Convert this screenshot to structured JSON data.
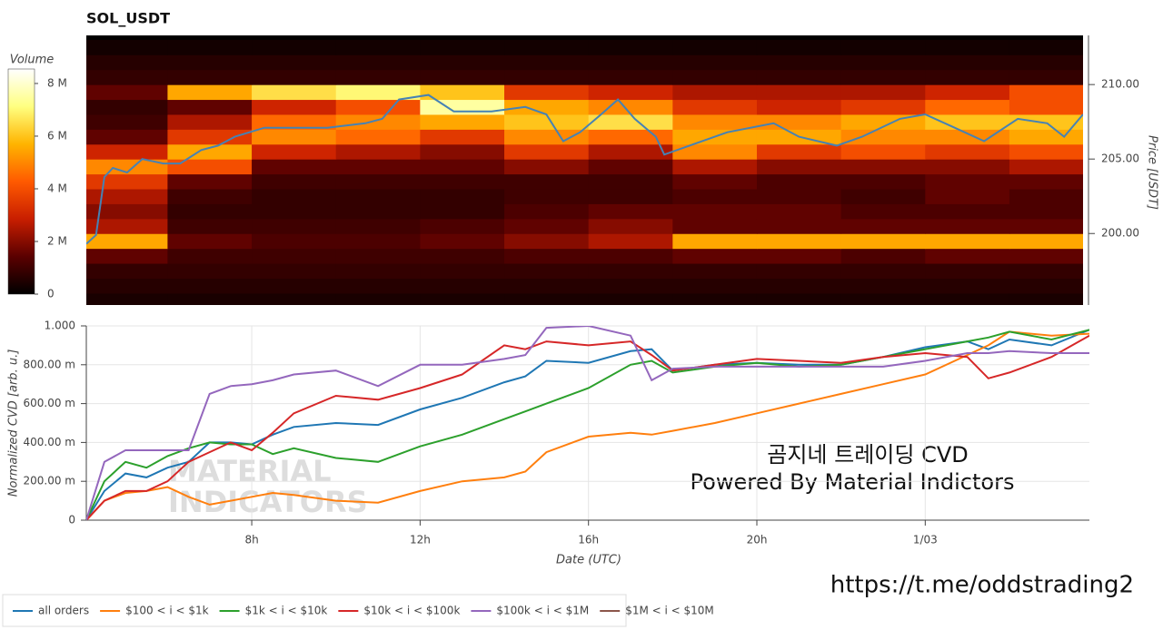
{
  "chart_data": [
    {
      "type": "heatmap",
      "title": "SOL_USDT",
      "ylabel": "Price [USDT]",
      "xlim": [
        4.07,
        27.75
      ],
      "ylim": [
        195.2,
        213.3
      ],
      "yticks": [
        {
          "value": 200,
          "label": "200.00"
        },
        {
          "value": 205,
          "label": "205.00"
        },
        {
          "value": 210,
          "label": "210.00"
        }
      ],
      "heatmap": {
        "x_edges": [
          4,
          6,
          8,
          10,
          12,
          14,
          16,
          18,
          20,
          22,
          24,
          26,
          28
        ],
        "y_edges": [
          195,
          196,
          197,
          198,
          199,
          200,
          201,
          202,
          203,
          204,
          205,
          206,
          207,
          208,
          209,
          210,
          211,
          212,
          213
        ],
        "values": [
          [
            400000,
            400000,
            400000,
            400000,
            400000,
            400000,
            400000,
            400000,
            400000,
            400000,
            400000,
            400000
          ],
          [
            600000,
            600000,
            600000,
            600000,
            600000,
            600000,
            600000,
            600000,
            600000,
            600000,
            600000,
            600000
          ],
          [
            800000,
            800000,
            800000,
            800000,
            800000,
            800000,
            800000,
            800000,
            800000,
            800000,
            800000,
            800000
          ],
          [
            1500000,
            1000000,
            1000000,
            1000000,
            1000000,
            1200000,
            1200000,
            1500000,
            1500000,
            1200000,
            1500000,
            1500000
          ],
          [
            5500000,
            1500000,
            1200000,
            1200000,
            1500000,
            2000000,
            2500000,
            5500000,
            5500000,
            5500000,
            5500000,
            5500000
          ],
          [
            2500000,
            1000000,
            1000000,
            1000000,
            1200000,
            1500000,
            2000000,
            1500000,
            1500000,
            1500000,
            1500000,
            1500000
          ],
          [
            2000000,
            800000,
            800000,
            800000,
            800000,
            1200000,
            1500000,
            1500000,
            1500000,
            1200000,
            1200000,
            1200000
          ],
          [
            2500000,
            1000000,
            800000,
            800000,
            800000,
            1000000,
            1000000,
            1200000,
            1200000,
            1000000,
            1500000,
            1200000
          ],
          [
            3500000,
            1500000,
            1000000,
            1000000,
            1000000,
            1000000,
            1000000,
            1500000,
            1200000,
            1200000,
            1500000,
            1500000
          ],
          [
            5000000,
            4000000,
            1500000,
            1500000,
            1500000,
            2000000,
            1500000,
            2500000,
            2000000,
            2000000,
            2000000,
            2500000
          ],
          [
            3000000,
            5500000,
            3000000,
            2500000,
            2000000,
            3500000,
            2500000,
            5000000,
            3500000,
            4000000,
            3500000,
            4000000
          ],
          [
            1500000,
            3500000,
            5000000,
            4500000,
            3500000,
            5000000,
            4500000,
            5500000,
            5500000,
            5000000,
            5000000,
            5500000
          ],
          [
            1000000,
            2500000,
            4500000,
            5000000,
            5500000,
            6000000,
            6500000,
            5000000,
            5000000,
            5500000,
            6000000,
            6000000
          ],
          [
            800000,
            1500000,
            3000000,
            4000000,
            7500000,
            5500000,
            5000000,
            3500000,
            3000000,
            3500000,
            4500000,
            4000000
          ],
          [
            1500000,
            5500000,
            6500000,
            7000000,
            6000000,
            3500000,
            3000000,
            2500000,
            2500000,
            2500000,
            3000000,
            4000000
          ],
          [
            800000,
            800000,
            800000,
            800000,
            800000,
            800000,
            800000,
            800000,
            800000,
            800000,
            800000,
            800000
          ],
          [
            600000,
            600000,
            600000,
            600000,
            600000,
            600000,
            600000,
            600000,
            600000,
            600000,
            600000,
            600000
          ],
          [
            300000,
            300000,
            300000,
            300000,
            300000,
            300000,
            300000,
            300000,
            300000,
            300000,
            300000,
            300000
          ]
        ]
      },
      "colorbar": {
        "title": "Volume",
        "lim": [
          0,
          8550000
        ],
        "ticks": [
          0,
          {
            "value": 2000000,
            "label": "2 M"
          },
          {
            "value": 4000000,
            "label": "4 M"
          },
          {
            "value": 6000000,
            "label": "6 M"
          },
          {
            "value": 8000000,
            "label": "8 M"
          }
        ],
        "colors": [
          "#000000",
          "#5a0000",
          "#c81e00",
          "#ff5a00",
          "#ffb400",
          "#ffff80",
          "#ffffff"
        ]
      },
      "series": [
        {
          "color": "#4682b4",
          "x": [
            4.07,
            4.3,
            4.5,
            4.7,
            5.04,
            5.4,
            5.9,
            6.3,
            6.8,
            7.2,
            7.6,
            8.3,
            9.0,
            9.8,
            10.7,
            11.1,
            11.5,
            12.2,
            12.8,
            13.7,
            14.5,
            15.0,
            15.4,
            15.8,
            16.3,
            16.7,
            17.1,
            17.6,
            17.8,
            18.4,
            19.3,
            20.4,
            21.0,
            21.9,
            22.5,
            23.4,
            24.0,
            24.7,
            25.4,
            26.2,
            26.9,
            27.3,
            27.75
          ],
          "values": [
            199.3,
            199.9,
            203.8,
            204.4,
            204.1,
            205.0,
            204.7,
            204.7,
            205.6,
            205.9,
            206.5,
            207.1,
            207.1,
            207.1,
            207.4,
            207.7,
            209.0,
            209.3,
            208.2,
            208.2,
            208.5,
            208.0,
            206.2,
            206.8,
            208.0,
            209.0,
            207.7,
            206.5,
            205.3,
            205.9,
            206.8,
            207.4,
            206.5,
            205.9,
            206.5,
            207.7,
            208.0,
            207.1,
            206.2,
            207.7,
            207.4,
            206.5,
            208.0
          ]
        }
      ]
    },
    {
      "type": "line",
      "xlabel": "Date (UTC)",
      "ylabel": "Normalized CVD [arb. u.]",
      "xlim": [
        4.07,
        27.9
      ],
      "xticks": [
        {
          "value": 8,
          "label": "8h"
        },
        {
          "value": 12,
          "label": "12h"
        },
        {
          "value": 16,
          "label": "16h"
        },
        {
          "value": 20,
          "label": "20h"
        },
        {
          "value": 24,
          "label": "1/03"
        }
      ],
      "ylim": [
        0,
        1
      ],
      "yticks": [
        0,
        {
          "value": 0.2,
          "label": "200.00 m"
        },
        {
          "value": 0.4,
          "label": "400.00 m"
        },
        {
          "value": 0.6,
          "label": "600.00 m"
        },
        {
          "value": 0.8,
          "label": "800.00 m"
        },
        {
          "value": 1,
          "label": "1.000"
        }
      ],
      "grid": true,
      "x": [
        4.07,
        4.5,
        5,
        5.5,
        6,
        6.5,
        7,
        7.5,
        8,
        8.5,
        9,
        10,
        11,
        12,
        13,
        14,
        14.5,
        15,
        16,
        17,
        17.5,
        18,
        19,
        20,
        21,
        22,
        23,
        24,
        25,
        25.5,
        26,
        27,
        27.9
      ],
      "series": [
        {
          "name": "all orders",
          "color": "#1f77b4",
          "values": [
            0,
            0.15,
            0.24,
            0.22,
            0.27,
            0.3,
            0.4,
            0.4,
            0.39,
            0.44,
            0.48,
            0.5,
            0.49,
            0.57,
            0.63,
            0.71,
            0.74,
            0.82,
            0.81,
            0.87,
            0.88,
            0.77,
            0.8,
            0.81,
            0.8,
            0.8,
            0.84,
            0.89,
            0.92,
            0.88,
            0.93,
            0.9,
            0.98
          ]
        },
        {
          "name": "$100 < i < $1k",
          "color": "#ff7f0e",
          "values": [
            0,
            0.1,
            0.14,
            0.15,
            0.17,
            0.12,
            0.08,
            0.1,
            0.12,
            0.14,
            0.13,
            0.1,
            0.09,
            0.15,
            0.2,
            0.22,
            0.25,
            0.35,
            0.43,
            0.45,
            0.44,
            0.46,
            0.5,
            0.55,
            0.6,
            0.65,
            0.7,
            0.75,
            0.85,
            0.9,
            0.97,
            0.95,
            0.96
          ]
        },
        {
          "name": "$1k < i < $10k",
          "color": "#2ca02c",
          "values": [
            0,
            0.2,
            0.3,
            0.27,
            0.33,
            0.37,
            0.4,
            0.39,
            0.39,
            0.34,
            0.37,
            0.32,
            0.3,
            0.38,
            0.44,
            0.52,
            0.56,
            0.6,
            0.68,
            0.8,
            0.82,
            0.76,
            0.79,
            0.81,
            0.79,
            0.8,
            0.84,
            0.88,
            0.92,
            0.94,
            0.97,
            0.93,
            0.98
          ]
        },
        {
          "name": "$10k < i < $100k",
          "color": "#d62728",
          "values": [
            0,
            0.1,
            0.15,
            0.15,
            0.2,
            0.3,
            0.35,
            0.4,
            0.36,
            0.45,
            0.55,
            0.64,
            0.62,
            0.68,
            0.75,
            0.9,
            0.88,
            0.92,
            0.9,
            0.92,
            0.85,
            0.77,
            0.8,
            0.83,
            0.82,
            0.81,
            0.84,
            0.86,
            0.84,
            0.73,
            0.76,
            0.84,
            0.95
          ]
        },
        {
          "name": "$100k < i < $1M",
          "color": "#9467bd",
          "values": [
            0,
            0.3,
            0.36,
            0.36,
            0.36,
            0.36,
            0.65,
            0.69,
            0.7,
            0.72,
            0.75,
            0.77,
            0.69,
            0.8,
            0.8,
            0.83,
            0.85,
            0.99,
            1.0,
            0.95,
            0.72,
            0.78,
            0.79,
            0.79,
            0.79,
            0.79,
            0.79,
            0.82,
            0.86,
            0.86,
            0.87,
            0.86,
            0.86
          ]
        },
        {
          "name": "$1M < i < $10M",
          "color": "#8c564b",
          "values": [
            null,
            null,
            null,
            null,
            null,
            null,
            null,
            null,
            null,
            null,
            null,
            null,
            null,
            null,
            null,
            null,
            null,
            null,
            null,
            null,
            null,
            null,
            null,
            null,
            null,
            null,
            null,
            null,
            null,
            null,
            null,
            null,
            null
          ]
        }
      ],
      "annotations": [
        "곰지네 트레이딩 CVD",
        "Powered By Material Indictors"
      ],
      "watermark": [
        "MATERIAL",
        "INDICATORS"
      ]
    }
  ],
  "footer": "https://t.me/oddstrading2"
}
